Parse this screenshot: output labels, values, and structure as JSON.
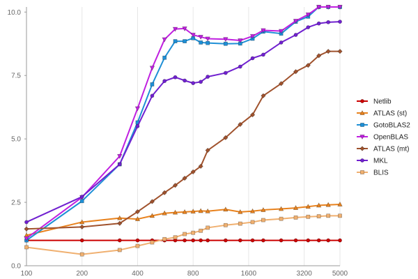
{
  "chart_data": {
    "type": "line",
    "title": "",
    "xlabel": "",
    "ylabel": "",
    "x_scale": "log",
    "x_tick_labels": [
      "100",
      "200",
      "400",
      "800",
      "1600",
      "3200",
      "5000"
    ],
    "x_ticks": [
      100,
      200,
      400,
      800,
      1600,
      3200,
      5000
    ],
    "y_tick_labels": [
      "0.0",
      "2.5",
      "5.0",
      "7.5",
      "10.0"
    ],
    "y_ticks": [
      0,
      2.5,
      5,
      7.5,
      10
    ],
    "xlim": [
      100,
      5000
    ],
    "ylim": [
      0,
      10.2
    ],
    "grid": "vertical",
    "legend_position": "right",
    "series": [
      {
        "name": "Netlib",
        "color": "#cc0000",
        "marker": "circle",
        "x": [
          100,
          200,
          320,
          400,
          480,
          560,
          640,
          720,
          800,
          880,
          960,
          1200,
          1440,
          1680,
          1920,
          2400,
          2880,
          3360,
          3840,
          4320,
          5000
        ],
        "values": [
          1.0,
          1.0,
          1.0,
          1.0,
          1.0,
          1.0,
          1.0,
          1.0,
          1.0,
          1.0,
          1.0,
          1.0,
          1.0,
          1.0,
          1.0,
          1.0,
          1.0,
          1.0,
          1.0,
          1.0,
          1.0
        ]
      },
      {
        "name": "ATLAS (st)",
        "color": "#e8821e",
        "marker": "triangle-up",
        "x": [
          100,
          200,
          320,
          400,
          480,
          560,
          640,
          720,
          800,
          880,
          960,
          1200,
          1440,
          1680,
          1920,
          2400,
          2880,
          3360,
          3840,
          4320,
          5000
        ],
        "values": [
          1.2,
          1.72,
          1.88,
          1.84,
          1.97,
          2.07,
          2.1,
          2.12,
          2.14,
          2.16,
          2.15,
          2.22,
          2.12,
          2.15,
          2.2,
          2.24,
          2.28,
          2.33,
          2.38,
          2.4,
          2.42
        ]
      },
      {
        "name": "GotoBLAS2",
        "color": "#1e8fd6",
        "marker": "square",
        "x": [
          100,
          200,
          320,
          400,
          480,
          560,
          640,
          720,
          800,
          880,
          960,
          1200,
          1440,
          1680,
          1920,
          2400,
          2880,
          3360,
          3840,
          4320,
          5000
        ],
        "values": [
          1.0,
          2.55,
          4.0,
          5.65,
          7.15,
          8.2,
          8.85,
          8.85,
          8.97,
          8.8,
          8.78,
          8.75,
          8.76,
          8.95,
          9.23,
          9.15,
          9.62,
          9.82,
          10.2,
          10.2,
          10.2
        ]
      },
      {
        "name": "OpenBLAS",
        "color": "#c020e0",
        "marker": "triangle-down",
        "x": [
          100,
          200,
          320,
          400,
          480,
          560,
          640,
          720,
          800,
          880,
          960,
          1200,
          1440,
          1680,
          1920,
          2400,
          2880,
          3360,
          3840,
          4320,
          5000
        ],
        "values": [
          1.08,
          2.7,
          4.32,
          6.2,
          7.8,
          8.92,
          9.33,
          9.35,
          9.1,
          9.02,
          8.95,
          8.93,
          8.88,
          9.05,
          9.28,
          9.25,
          9.65,
          9.9,
          10.2,
          10.2,
          10.2
        ]
      },
      {
        "name": "ATLAS (mt)",
        "color": "#a0522d",
        "marker": "diamond",
        "x": [
          100,
          200,
          320,
          400,
          480,
          560,
          640,
          720,
          800,
          880,
          960,
          1200,
          1440,
          1680,
          1920,
          2400,
          2880,
          3360,
          3840,
          4320,
          5000
        ],
        "values": [
          1.45,
          1.53,
          1.67,
          2.13,
          2.53,
          2.88,
          3.17,
          3.45,
          3.7,
          3.92,
          4.55,
          5.05,
          5.57,
          5.95,
          6.7,
          7.18,
          7.65,
          7.9,
          8.28,
          8.45,
          8.45
        ]
      },
      {
        "name": "MKL",
        "color": "#7020d0",
        "marker": "circle",
        "x": [
          100,
          200,
          320,
          400,
          480,
          560,
          640,
          720,
          800,
          880,
          960,
          1200,
          1440,
          1680,
          1920,
          2400,
          2880,
          3360,
          3840,
          4320,
          5000
        ],
        "values": [
          1.72,
          2.72,
          4.0,
          5.5,
          6.7,
          7.28,
          7.43,
          7.3,
          7.2,
          7.25,
          7.45,
          7.6,
          7.85,
          8.18,
          8.32,
          8.8,
          9.1,
          9.4,
          9.55,
          9.6,
          9.62
        ]
      },
      {
        "name": "BLIS",
        "color": "#f0b070",
        "marker": "square",
        "x": [
          100,
          200,
          320,
          400,
          480,
          560,
          640,
          720,
          800,
          880,
          960,
          1200,
          1440,
          1680,
          1920,
          2400,
          2880,
          3360,
          3840,
          4320,
          5000
        ],
        "values": [
          0.73,
          0.45,
          0.62,
          0.78,
          0.92,
          1.05,
          1.12,
          1.25,
          1.3,
          1.38,
          1.5,
          1.6,
          1.66,
          1.72,
          1.8,
          1.85,
          1.9,
          1.93,
          1.95,
          1.97,
          1.97
        ]
      }
    ]
  }
}
